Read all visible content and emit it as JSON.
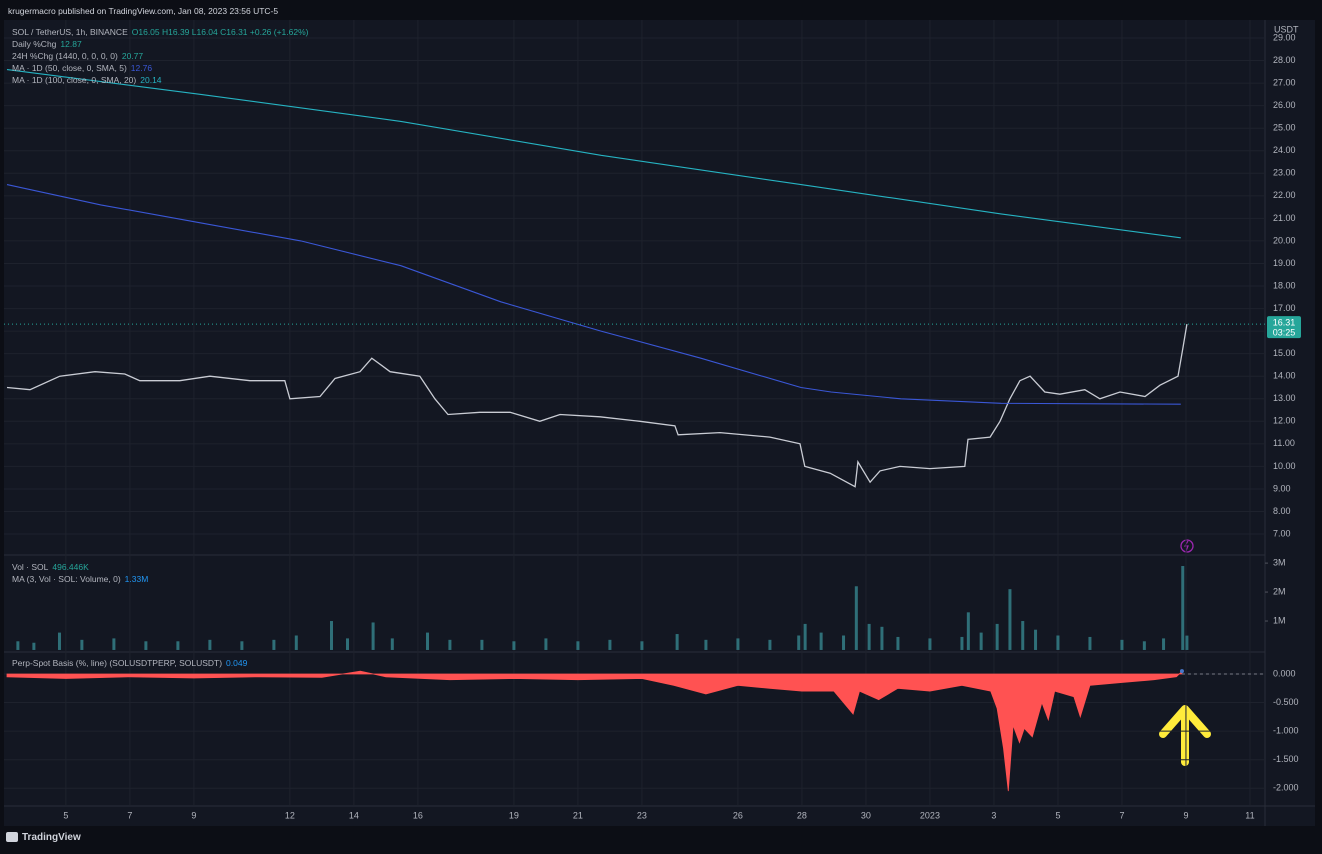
{
  "header": {
    "published": "krugermacro published on TradingView.com, Jan 08, 2023 23:56 UTC-5",
    "footer": "TradingView",
    "currency": "USDT"
  },
  "chart_data": [
    {
      "type": "line",
      "title": "SOL / TetherUS, 1h, BINANCE",
      "ohlc": "O16.05 H16.39 L16.04 C16.31 +0.26 (+1.62%)",
      "indicators": [
        {
          "name": "Daily %Chg",
          "value": 12.87,
          "color": "#26a69a"
        },
        {
          "name": "24H %Chg (1440, 0, 0, 0, 0)",
          "value": 20.77,
          "color": "#26a69a"
        }
      ],
      "last_price": 16.31,
      "countdown": "03:25",
      "xlim": [
        3.16,
        42.47
      ],
      "xticks": [
        5,
        7,
        9,
        12,
        14,
        16,
        19,
        21,
        23,
        26,
        28,
        30,
        {
          "value": 32,
          "label": "2023"
        },
        {
          "value": 34,
          "label": "3"
        },
        {
          "value": 36,
          "label": "5"
        },
        {
          "value": 38,
          "label": "7"
        },
        {
          "value": 40,
          "label": "9"
        },
        {
          "value": 42,
          "label": "11"
        }
      ],
      "ylim": [
        6.07,
        29.71
      ],
      "yticks": [
        {
          "value": 7,
          "label": "7.00"
        },
        {
          "value": 8,
          "label": "8.00"
        },
        {
          "value": 9,
          "label": "9.00"
        },
        {
          "value": 10,
          "label": "10.00"
        },
        {
          "value": 11,
          "label": "11.00"
        },
        {
          "value": 12,
          "label": "12.00"
        },
        {
          "value": 13,
          "label": "13.00"
        },
        {
          "value": 14,
          "label": "14.00"
        },
        {
          "value": 15,
          "label": "15.00"
        },
        {
          "value": 16,
          "label": "16.00"
        },
        {
          "value": 17,
          "label": "17.00"
        },
        {
          "value": 18,
          "label": "18.00"
        },
        {
          "value": 19,
          "label": "19.00"
        },
        {
          "value": 20,
          "label": "20.00"
        },
        {
          "value": 21,
          "label": "21.00"
        },
        {
          "value": 22,
          "label": "22.00"
        },
        {
          "value": 23,
          "label": "23.00"
        },
        {
          "value": 24,
          "label": "24.00"
        },
        {
          "value": 25,
          "label": "25.00"
        },
        {
          "value": 26,
          "label": "26.00"
        },
        {
          "value": 27,
          "label": "27.00"
        },
        {
          "value": 28,
          "label": "28.00"
        },
        {
          "value": 29,
          "label": "29.00"
        }
      ],
      "grid": true,
      "series": [
        {
          "name": "SOL / TetherUS",
          "color": "#c9ccd4",
          "x": [
            3.16,
            3.88,
            4.81,
            5.91,
            6.84,
            7.31,
            8.56,
            9.5,
            10.75,
            11.84,
            12,
            12.94,
            13.41,
            14.19,
            14.56,
            15.13,
            16.06,
            16.53,
            16.94,
            17.94,
            18.88,
            19.81,
            20.44,
            21.69,
            22.94,
            24.03,
            24.13,
            25.44,
            27,
            27.94,
            28.09,
            28.88,
            29.66,
            29.75,
            30.13,
            30.44,
            31.06,
            32,
            33.09,
            33.19,
            33.88,
            34.19,
            34.5,
            34.81,
            35.13,
            35.59,
            36.06,
            36.84,
            37.31,
            37.94,
            38.72,
            39.19,
            39.75,
            39.91,
            40.03
          ],
          "values": [
            13.5,
            13.4,
            14.0,
            14.2,
            14.1,
            13.8,
            13.8,
            14.0,
            13.8,
            13.8,
            13.0,
            13.1,
            13.9,
            14.2,
            14.8,
            14.2,
            14.0,
            13.0,
            12.3,
            12.4,
            12.4,
            12.0,
            12.3,
            12.2,
            12.0,
            11.8,
            11.4,
            11.5,
            11.3,
            11.0,
            10.0,
            9.7,
            9.1,
            10.2,
            9.3,
            9.8,
            10.0,
            9.9,
            10.0,
            11.2,
            11.3,
            12.0,
            13.0,
            13.8,
            14.0,
            13.3,
            13.2,
            13.4,
            13.0,
            13.3,
            13.1,
            13.6,
            14.0,
            15.3,
            16.31
          ]
        },
        {
          "name": "MA · 1D (50, close, 0, SMA, 5)",
          "color": "#3a57d6",
          "legend_value": 12.76,
          "x": [
            3.16,
            6.09,
            9.22,
            12.34,
            15.47,
            18.59,
            21.72,
            24.84,
            27.97,
            28.91,
            31.09,
            34.22,
            39.84
          ],
          "values": [
            22.5,
            21.6,
            20.8,
            20.0,
            18.9,
            17.3,
            16.0,
            14.8,
            13.5,
            13.3,
            13.0,
            12.8,
            12.76
          ]
        },
        {
          "name": "MA · 1D (100, close, 0, SMA, 20)",
          "color": "#26b3c2",
          "legend_value": 20.14,
          "x": [
            3.16,
            9.22,
            15.47,
            21.72,
            27.97,
            34.22,
            39.84
          ],
          "values": [
            27.6,
            26.5,
            25.3,
            23.8,
            22.5,
            21.2,
            20.14
          ]
        }
      ]
    },
    {
      "type": "bar",
      "title": "Vol · SOL",
      "value": 496446,
      "value_label": "496.446K",
      "ma_name": "MA (3, Vol · SOL: Volume, 0)",
      "ma_value": 1330000,
      "ma_value_label": "1.33M",
      "color": "#2f6f78",
      "ylim": [
        -70000,
        3280000
      ],
      "yticks": [
        {
          "value": 1000000,
          "label": "1M"
        },
        {
          "value": 2000000,
          "label": "2M"
        },
        {
          "value": 3000000,
          "label": "3M"
        }
      ],
      "x": [
        3.5,
        4,
        4.8,
        5.5,
        6.5,
        7.5,
        8.5,
        9.5,
        10.5,
        11.5,
        12.2,
        13.3,
        13.8,
        14.6,
        15.2,
        16.3,
        17,
        18,
        19,
        20,
        21,
        22,
        23,
        24.1,
        25,
        26,
        27,
        27.9,
        28.1,
        28.6,
        29.3,
        29.7,
        30.1,
        30.5,
        31,
        32,
        33,
        33.2,
        33.6,
        34.1,
        34.5,
        34.9,
        35.3,
        36,
        37,
        38,
        38.7,
        39.3,
        39.9,
        40.03
      ],
      "values": [
        300000,
        250000,
        600000,
        350000,
        400000,
        300000,
        300000,
        350000,
        300000,
        350000,
        500000,
        1000000,
        400000,
        950000,
        400000,
        600000,
        350000,
        350000,
        300000,
        400000,
        300000,
        350000,
        300000,
        550000,
        350000,
        400000,
        350000,
        500000,
        900000,
        600000,
        500000,
        2200000,
        900000,
        800000,
        450000,
        400000,
        450000,
        1300000,
        600000,
        900000,
        2100000,
        1000000,
        700000,
        500000,
        450000,
        350000,
        300000,
        400000,
        2900000,
        496446
      ]
    },
    {
      "type": "area",
      "title": "Perp-Spot Basis (%, line) (SOLUSDTPERP, SOLUSDT)",
      "value": 0.049,
      "color": "#ff5252",
      "last_color": "#4a78c8",
      "ylim": [
        -2.31,
        0.367
      ],
      "yticks": [
        {
          "value": 0,
          "label": "0.000"
        },
        {
          "value": -0.5,
          "label": "-0.500"
        },
        {
          "value": -1,
          "label": "-1.000"
        },
        {
          "value": -1.5,
          "label": "-1.500"
        },
        {
          "value": -2,
          "label": "-2.000"
        }
      ],
      "x": [
        3.16,
        5,
        7,
        9,
        11,
        13,
        14.2,
        15,
        17,
        19,
        21,
        23,
        24,
        25,
        26,
        27,
        28,
        29,
        29.6,
        29.8,
        30.4,
        31,
        32,
        33,
        33.9,
        34.1,
        34.3,
        34.45,
        34.6,
        34.8,
        34.95,
        35.2,
        35.5,
        35.7,
        35.9,
        36.5,
        36.7,
        37,
        38,
        39,
        39.7,
        39.875
      ],
      "values": [
        -0.05,
        -0.08,
        -0.05,
        -0.07,
        -0.05,
        -0.06,
        0.05,
        -0.05,
        -0.1,
        -0.08,
        -0.1,
        -0.08,
        -0.2,
        -0.35,
        -0.2,
        -0.25,
        -0.3,
        -0.3,
        -0.7,
        -0.3,
        -0.45,
        -0.25,
        -0.3,
        -0.2,
        -0.3,
        -0.6,
        -1.3,
        -2.05,
        -0.9,
        -1.2,
        -0.95,
        -1.1,
        -0.5,
        -0.8,
        -0.3,
        -0.4,
        -0.75,
        -0.2,
        -0.15,
        -0.1,
        -0.05,
        0.049
      ]
    }
  ]
}
